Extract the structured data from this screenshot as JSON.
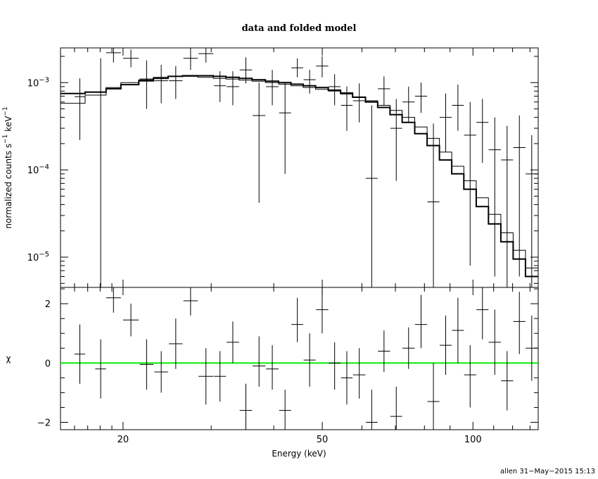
{
  "chart_data": [
    {
      "type": "line",
      "panel": "spectrum",
      "title": "data and folded model",
      "ylabel_main": "normalized counts s",
      "ylabel_sup1": "−1",
      "ylabel_mid": " keV",
      "ylabel_sup2": "−1",
      "xscale": "log",
      "yscale": "log",
      "xlim": [
        15,
        135
      ],
      "ylim": [
        4.5e-06,
        0.0025
      ],
      "ytick_labels": [
        {
          "value": 1e-05,
          "base": "10",
          "exp": "−5"
        },
        {
          "value": 0.0001,
          "base": "10",
          "exp": "−4"
        },
        {
          "value": 0.001,
          "base": "10",
          "exp": "−3"
        }
      ],
      "data_points": [
        [
          16.0,
          0.00069,
          16.8,
          0.00022,
          0.00112
        ],
        [
          17.6,
          0.00072,
          18.5,
          4.5e-06,
          0.0019
        ],
        [
          18.5,
          0.0022,
          19.8,
          0.0017,
          0.0029
        ],
        [
          20.0,
          0.0019,
          21.5,
          0.0015,
          0.0024
        ],
        [
          21.6,
          0.0011,
          23.0,
          0.0005,
          0.0018
        ],
        [
          23.1,
          0.00105,
          24.6,
          0.00058,
          0.0016
        ],
        [
          24.7,
          0.00105,
          26.3,
          0.00065,
          0.00155
        ],
        [
          26.4,
          0.0019,
          28.2,
          0.0014,
          0.0026
        ],
        [
          28.3,
          0.00215,
          30.3,
          0.0017,
          0.0027
        ],
        [
          30.4,
          0.00092,
          32.1,
          0.0006,
          0.00135
        ],
        [
          32.2,
          0.0009,
          34.1,
          0.00055,
          0.00135
        ],
        [
          34.2,
          0.0014,
          36.2,
          0.00098,
          0.00195
        ],
        [
          36.3,
          0.00042,
          38.5,
          4.2e-05,
          0.001
        ],
        [
          38.6,
          0.0009,
          40.9,
          0.00055,
          0.0014
        ],
        [
          41.0,
          0.00045,
          43.3,
          9e-05,
          0.001
        ],
        [
          43.4,
          0.00148,
          45.8,
          0.00115,
          0.0019
        ],
        [
          45.9,
          0.00108,
          48.5,
          0.00075,
          0.0014
        ],
        [
          48.6,
          0.00155,
          51.4,
          0.00115,
          0.002
        ],
        [
          51.5,
          0.0009,
          54.4,
          0.00055,
          0.00125
        ],
        [
          54.5,
          0.00055,
          57.5,
          0.00028,
          0.0009
        ],
        [
          57.6,
          0.00062,
          61.0,
          0.00035,
          0.00098
        ],
        [
          61.1,
          8e-05,
          64.5,
          4.5e-06,
          0.00055
        ],
        [
          64.6,
          0.00085,
          68.3,
          0.00055,
          0.00118
        ],
        [
          68.4,
          0.0003,
          72.2,
          7.5e-05,
          0.00065
        ],
        [
          72.3,
          0.0006,
          76.5,
          0.00035,
          0.0009
        ],
        [
          76.6,
          0.0007,
          81.0,
          0.00045,
          0.001
        ],
        [
          81.1,
          4.3e-05,
          85.7,
          4.5e-06,
          0.00034
        ],
        [
          85.8,
          0.0004,
          90.7,
          0.00016,
          0.00075
        ],
        [
          90.8,
          0.00055,
          95.9,
          0.00028,
          0.00095
        ],
        [
          96.0,
          0.00025,
          101.5,
          8e-06,
          0.0006
        ],
        [
          101.6,
          0.00035,
          107.4,
          0.00012,
          0.00065
        ],
        [
          107.5,
          0.00017,
          113.7,
          6e-06,
          0.0004
        ],
        [
          113.8,
          0.00013,
          120.3,
          4.5e-06,
          0.00032
        ],
        [
          120.4,
          0.00018,
          127.3,
          6e-06,
          0.00042
        ],
        [
          127.4,
          9e-05,
          134.8,
          4.5e-06,
          0.00025
        ]
      ],
      "model_steps": [
        [
          15.0,
          0.00075
        ],
        [
          16.8,
          0.00078
        ],
        [
          18.5,
          0.00085
        ],
        [
          19.8,
          0.00095
        ],
        [
          21.5,
          0.00105
        ],
        [
          23.0,
          0.00112
        ],
        [
          24.6,
          0.00118
        ],
        [
          26.3,
          0.0012
        ],
        [
          28.2,
          0.0012
        ],
        [
          30.3,
          0.00118
        ],
        [
          32.1,
          0.00115
        ],
        [
          34.1,
          0.00112
        ],
        [
          36.2,
          0.00108
        ],
        [
          38.5,
          0.00104
        ],
        [
          40.9,
          0.001
        ],
        [
          43.3,
          0.00096
        ],
        [
          45.8,
          0.00092
        ],
        [
          48.5,
          0.00088
        ],
        [
          51.4,
          0.00082
        ],
        [
          54.4,
          0.00076
        ],
        [
          57.5,
          0.00068
        ],
        [
          61.0,
          0.0006
        ],
        [
          64.5,
          0.00052
        ],
        [
          68.3,
          0.00043
        ],
        [
          72.2,
          0.00035
        ],
        [
          76.5,
          0.00026
        ],
        [
          81.0,
          0.00019
        ],
        [
          85.7,
          0.00013
        ],
        [
          90.7,
          9e-05
        ],
        [
          95.9,
          6e-05
        ],
        [
          101.5,
          3.8e-05
        ],
        [
          107.4,
          2.4e-05
        ],
        [
          113.7,
          1.5e-05
        ],
        [
          120.3,
          9.5e-06
        ],
        [
          127.3,
          6e-06
        ],
        [
          134.8,
          4.5e-06
        ]
      ],
      "model2_steps": [
        [
          15.0,
          0.00058
        ],
        [
          16.8,
          0.00072
        ],
        [
          18.5,
          0.00088
        ],
        [
          19.8,
          0.001
        ],
        [
          21.5,
          0.00108
        ],
        [
          23.0,
          0.00115
        ],
        [
          24.6,
          0.00118
        ],
        [
          26.3,
          0.00118
        ],
        [
          28.2,
          0.00115
        ],
        [
          30.3,
          0.00112
        ],
        [
          32.1,
          0.0011
        ],
        [
          34.1,
          0.00107
        ],
        [
          36.2,
          0.00104
        ],
        [
          38.5,
          0.001
        ],
        [
          40.9,
          0.00096
        ],
        [
          43.3,
          0.00092
        ],
        [
          45.8,
          0.00088
        ],
        [
          48.5,
          0.00084
        ],
        [
          51.4,
          0.0008
        ],
        [
          54.4,
          0.00074
        ],
        [
          57.5,
          0.00068
        ],
        [
          61.0,
          0.00062
        ],
        [
          64.5,
          0.00055
        ],
        [
          68.3,
          0.00048
        ],
        [
          72.2,
          0.0004
        ],
        [
          76.5,
          0.00031
        ],
        [
          81.0,
          0.00023
        ],
        [
          85.7,
          0.00016
        ],
        [
          90.7,
          0.00011
        ],
        [
          95.9,
          7.5e-05
        ],
        [
          101.5,
          4.8e-05
        ],
        [
          107.4,
          3.1e-05
        ],
        [
          113.7,
          1.9e-05
        ],
        [
          120.3,
          1.2e-05
        ],
        [
          127.3,
          7.5e-06
        ],
        [
          134.8,
          5e-06
        ]
      ]
    },
    {
      "type": "line",
      "panel": "residuals",
      "ylabel": "χ",
      "xlabel": "Energy (keV)",
      "xscale": "log",
      "xlim": [
        15,
        135
      ],
      "ylim": [
        -2.25,
        2.55
      ],
      "yticks": [
        -2,
        0,
        2
      ],
      "ytick_labels": [
        "−2",
        "0",
        "2"
      ],
      "xticks": [
        20,
        50,
        100
      ],
      "xtick_labels": [
        "20",
        "50",
        "100"
      ],
      "zero_line_color": "#00ee00",
      "residuals": [
        [
          16.0,
          0.3,
          16.8,
          -0.7,
          1.3
        ],
        [
          17.6,
          -0.2,
          18.5,
          -1.2,
          0.8
        ],
        [
          18.5,
          2.2,
          19.8,
          1.7,
          2.7
        ],
        [
          20.0,
          1.45,
          21.5,
          0.9,
          2.0
        ],
        [
          21.6,
          -0.05,
          23.0,
          -0.9,
          0.8
        ],
        [
          23.1,
          -0.3,
          24.6,
          -1.0,
          0.4
        ],
        [
          24.7,
          0.65,
          26.3,
          -0.2,
          1.5
        ],
        [
          26.4,
          2.1,
          28.2,
          1.6,
          2.6
        ],
        [
          28.3,
          -0.45,
          30.3,
          -1.4,
          0.5
        ],
        [
          30.4,
          -0.45,
          32.1,
          -1.3,
          0.4
        ],
        [
          32.2,
          0.7,
          34.1,
          0.0,
          1.4
        ],
        [
          34.2,
          -1.6,
          36.2,
          -2.25,
          -0.7
        ],
        [
          36.3,
          -0.1,
          38.5,
          -0.8,
          0.9
        ],
        [
          38.6,
          -0.2,
          40.9,
          -0.9,
          0.6
        ],
        [
          41.0,
          -1.6,
          43.3,
          -2.25,
          -0.9
        ],
        [
          43.4,
          1.3,
          45.8,
          0.7,
          2.2
        ],
        [
          45.9,
          0.1,
          48.5,
          -0.8,
          1.0
        ],
        [
          48.6,
          1.8,
          51.4,
          1.0,
          2.6
        ],
        [
          51.5,
          0.0,
          54.4,
          -0.9,
          0.7
        ],
        [
          54.5,
          -0.5,
          57.5,
          -1.4,
          0.4
        ],
        [
          57.6,
          -0.4,
          61.0,
          -1.2,
          0.5
        ],
        [
          61.1,
          -2.0,
          64.5,
          -2.25,
          -0.9
        ],
        [
          64.6,
          0.4,
          68.3,
          -0.3,
          1.1
        ],
        [
          68.4,
          -1.8,
          72.2,
          -2.25,
          -0.8
        ],
        [
          72.3,
          0.5,
          76.5,
          -0.2,
          1.2
        ],
        [
          76.6,
          1.3,
          81.0,
          0.5,
          2.3
        ],
        [
          81.1,
          -1.3,
          85.7,
          -2.25,
          0.0
        ],
        [
          85.8,
          0.6,
          90.7,
          -0.4,
          1.6
        ],
        [
          90.8,
          1.1,
          95.9,
          0.0,
          2.2
        ],
        [
          96.0,
          -0.4,
          101.5,
          -1.5,
          0.6
        ],
        [
          101.6,
          1.8,
          107.4,
          0.8,
          2.6
        ],
        [
          107.5,
          0.7,
          113.7,
          -0.4,
          1.8
        ],
        [
          113.8,
          -0.6,
          120.3,
          -1.6,
          0.4
        ],
        [
          120.4,
          1.4,
          127.3,
          0.3,
          2.4
        ],
        [
          127.4,
          0.5,
          134.8,
          -0.6,
          1.6
        ]
      ]
    }
  ],
  "stamp": "allen 31−May−2015 15:13"
}
